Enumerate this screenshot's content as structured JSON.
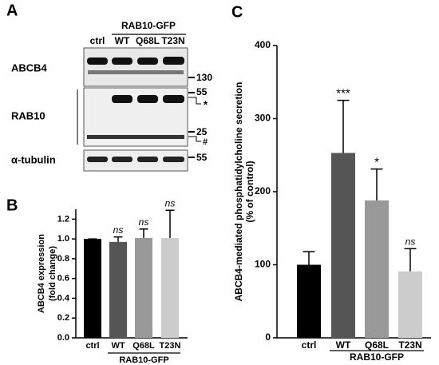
{
  "panel_labels": [
    "A",
    "B",
    "C"
  ],
  "blot": {
    "group_label": "RAB10-GFP",
    "lanes": [
      "ctrl",
      "WT",
      "Q68L",
      "T23N"
    ],
    "rows": [
      "ABCB4",
      "RAB10",
      "α-tubulin"
    ],
    "markers": [
      130,
      55,
      25,
      55
    ],
    "band_notes": [
      "*",
      "#"
    ]
  },
  "chart_data": [
    {
      "type": "bar",
      "group_label": "RAB10-GFP",
      "ylabel": [
        "ABCB4 expression",
        "(fold change)"
      ],
      "categories": [
        "ctrl",
        "WT",
        "Q68L",
        "T23N"
      ],
      "values": [
        1.0,
        0.97,
        1.01,
        1.01
      ],
      "errors": [
        0,
        0.05,
        0.09,
        0.28
      ],
      "annotations": [
        null,
        "ns",
        "ns",
        "ns"
      ],
      "colors": [
        "#000000",
        "#555555",
        "#999999",
        "#cccccc"
      ],
      "ylim": [
        0,
        1.3
      ],
      "yticks": [
        {
          "value": 0,
          "label": "0.0"
        },
        {
          "value": 0.2,
          "label": "0.2"
        },
        {
          "value": 0.4,
          "label": "0.4"
        },
        {
          "value": 0.6,
          "label": "0.6"
        },
        {
          "value": 0.8,
          "label": "0.8"
        },
        {
          "value": 1,
          "label": "1.0"
        },
        {
          "value": 1.2,
          "label": "1.2"
        }
      ]
    },
    {
      "type": "bar",
      "group_label": "RAB10-GFP",
      "ylabel": [
        "ABCB4-mediated phosphatidylcholine secretion",
        "(% of control)"
      ],
      "categories": [
        "ctrl",
        "WT",
        "Q68L",
        "T23N"
      ],
      "values": [
        100,
        253,
        188,
        91
      ],
      "errors": [
        18,
        72,
        43,
        31
      ],
      "annotations": [
        null,
        "***",
        "*",
        "ns"
      ],
      "colors": [
        "#000000",
        "#555555",
        "#999999",
        "#cccccc"
      ],
      "ylim": [
        0,
        400
      ],
      "yticks": [
        0,
        100,
        200,
        300,
        400
      ]
    }
  ]
}
